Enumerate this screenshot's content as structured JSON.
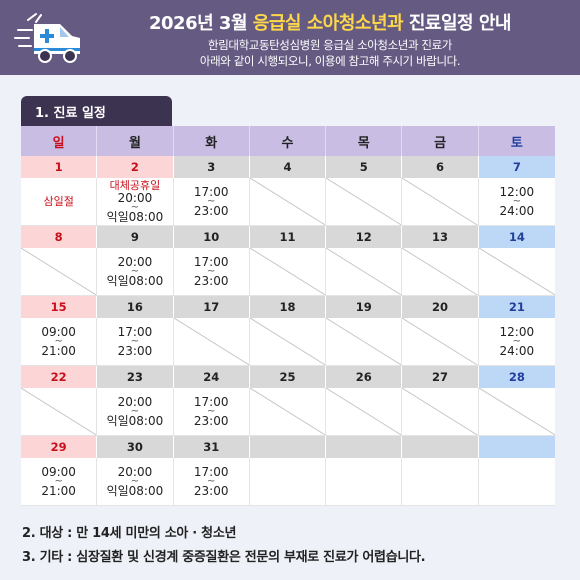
{
  "header": {
    "title_pre": "2026년 3월 ",
    "title_accent": "응급실 소아청소년과",
    "title_post": " 진료일정 안내",
    "subtitle_line1": "한림대학교동탄성심병원 응급실 소아청소년과 진료가",
    "subtitle_line2": "아래와 같이 시행되오니, 이용에 참고해 주시기 바랍니다."
  },
  "section1": {
    "label": "1. 진료 일정"
  },
  "weekdays": [
    "일",
    "월",
    "화",
    "수",
    "목",
    "금",
    "토"
  ],
  "weeks": [
    [
      {
        "day": "1",
        "kind": "sun",
        "note": "삼일절"
      },
      {
        "day": "2",
        "kind": "hol",
        "note": "대체공휴일",
        "start": "20:00",
        "end": "익일08:00"
      },
      {
        "day": "3",
        "start": "17:00",
        "end": "23:00"
      },
      {
        "day": "4",
        "diag": true
      },
      {
        "day": "5",
        "diag": true
      },
      {
        "day": "6",
        "diag": true
      },
      {
        "day": "7",
        "kind": "sat",
        "start": "12:00",
        "end": "24:00"
      }
    ],
    [
      {
        "day": "8",
        "kind": "sun",
        "diag": true
      },
      {
        "day": "9",
        "start": "20:00",
        "end": "익일08:00"
      },
      {
        "day": "10",
        "start": "17:00",
        "end": "23:00"
      },
      {
        "day": "11",
        "diag": true
      },
      {
        "day": "12",
        "diag": true
      },
      {
        "day": "13",
        "diag": true
      },
      {
        "day": "14",
        "kind": "sat",
        "diag": true
      }
    ],
    [
      {
        "day": "15",
        "kind": "sun",
        "start": "09:00",
        "end": "21:00"
      },
      {
        "day": "16",
        "start": "17:00",
        "end": "23:00"
      },
      {
        "day": "17",
        "diag": true
      },
      {
        "day": "18",
        "diag": true
      },
      {
        "day": "19",
        "diag": true
      },
      {
        "day": "20",
        "diag": true
      },
      {
        "day": "21",
        "kind": "sat",
        "start": "12:00",
        "end": "24:00"
      }
    ],
    [
      {
        "day": "22",
        "kind": "sun",
        "diag": true
      },
      {
        "day": "23",
        "start": "20:00",
        "end": "익일08:00"
      },
      {
        "day": "24",
        "start": "17:00",
        "end": "23:00"
      },
      {
        "day": "25",
        "diag": true
      },
      {
        "day": "26",
        "diag": true
      },
      {
        "day": "27",
        "diag": true
      },
      {
        "day": "28",
        "kind": "sat",
        "diag": true
      }
    ],
    [
      {
        "day": "29",
        "kind": "sun",
        "start": "09:00",
        "end": "21:00"
      },
      {
        "day": "30",
        "start": "20:00",
        "end": "익일08:00"
      },
      {
        "day": "31",
        "start": "17:00",
        "end": "23:00"
      },
      {
        "day": "",
        "kind": "empty"
      },
      {
        "day": "",
        "kind": "empty"
      },
      {
        "day": "",
        "kind": "empty"
      },
      {
        "day": "",
        "kind": "empty-sat"
      }
    ]
  ],
  "tilde": "~",
  "footer": {
    "line2": "2. 대상 : 만 14세 미만의 소아 · 청소년",
    "line3": "3. 기타 : 심장질환 및 신경계 중증질환은 전문의 부재로 진료가 어렵습니다."
  },
  "colors": {
    "header_bg": "#645a82",
    "accent": "#ffd84a",
    "sunday": "#c8101c",
    "saturday": "#233f9c"
  }
}
